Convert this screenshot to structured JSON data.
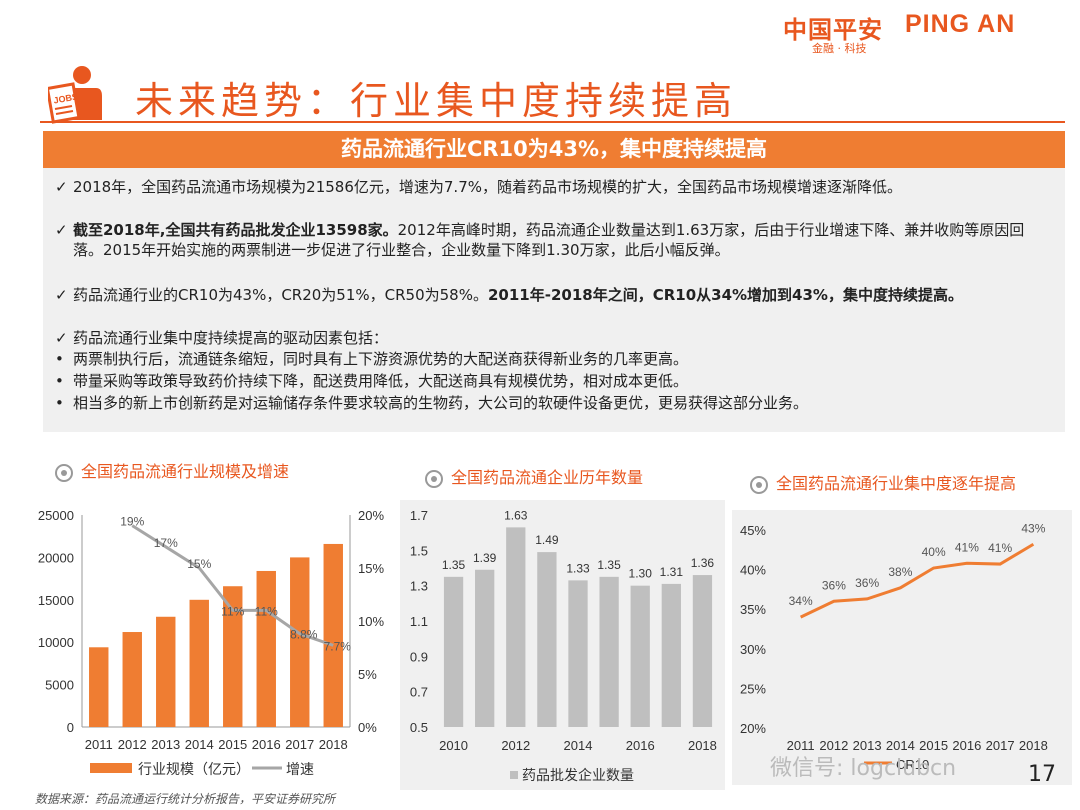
{
  "brand": {
    "cn": "中国平安",
    "en": "PING AN",
    "sub": "金融 · 科技"
  },
  "title": "未来趋势：行业集中度持续提高",
  "icon": "jobs-board-icon",
  "banner": "药品流通行业CR10为43%，集中度持续提高",
  "bullets": {
    "b1": "2018年，全国药品流通市场规模为21586亿元，增速为7.7%，随着药品市场规模的扩大，全国药品市场规模增速逐渐降低。",
    "b2_bold": "截至2018年,全国共有药品批发企业13598家。",
    "b2_rest": "2012年高峰时期，药品流通企业数量达到1.63万家，后由于行业增速下降、兼并收购等原因回落。2015年开始实施的两票制进一步促进了行业整合，企业数量下降到1.30万家，此后小幅反弹。",
    "b3_rest": "药品流通行业的CR10为43%，CR20为51%，CR50为58%。",
    "b3_bold": "2011年-2018年之间，CR10从34%增加到43%，集中度持续提高。",
    "b4": "药品流通行业集中度持续提高的驱动因素包括：",
    "d1": "两票制执行后，流通链条缩短，同时具有上下游资源优势的大配送商获得新业务的几率更高。",
    "d2": "带量采购等政策导致药价持续下降，配送费用降低，大配送商具有规模优势，相对成本更低。",
    "d3": "相当多的新上市创新药是对运输储存条件要求较高的生物药，大公司的软硬件设备更优，更易获得这部分业务。"
  },
  "chart_titles": [
    "全国药品流通行业规模及增速",
    "全国药品流通企业历年数量",
    "全国药品流通行业集中度逐年提高"
  ],
  "footer": "数据来源：药品流通运行统计分析报告，平安证券研究所",
  "page_number": "17",
  "watermark": "微信号: logclubcn",
  "colors": {
    "orange": "#e8571f",
    "banner": "#ef7d32",
    "bar_orange": "#ef7d32",
    "bar_grey": "#bfbfbf",
    "line_grey": "#a6a6a6"
  },
  "chart_data": [
    {
      "type": "bar",
      "title": "全国药品流通行业规模及增速",
      "categories": [
        "2011",
        "2012",
        "2013",
        "2014",
        "2015",
        "2016",
        "2017",
        "2018"
      ],
      "series": [
        {
          "name": "行业规模（亿元）",
          "type": "bar",
          "values": [
            9400,
            11200,
            13000,
            15000,
            16600,
            18400,
            20000,
            21586
          ]
        },
        {
          "name": "增速",
          "type": "line",
          "axis": "right",
          "values": [
            19,
            17,
            15,
            11,
            11,
            8.8,
            7.7
          ],
          "x": [
            "2012",
            "2013",
            "2014",
            "2015",
            "2016",
            "2017",
            "2018"
          ],
          "labels": [
            "19%",
            "17%",
            "15%",
            "11%",
            "11%",
            "8.8%",
            "7.7%"
          ]
        }
      ],
      "yticks": [
        "0",
        "5000",
        "10000",
        "15000",
        "20000",
        "25000"
      ],
      "ylim": [
        0,
        25000
      ],
      "y2ticks": [
        "0%",
        "5%",
        "10%",
        "15%",
        "20%"
      ],
      "y2lim": [
        0,
        20
      ],
      "legend": "bottom"
    },
    {
      "type": "bar",
      "title": "全国药品流通企业历年数量",
      "categories": [
        "2010",
        "2011",
        "2012",
        "2013",
        "2014",
        "2015",
        "2016",
        "2017",
        "2018"
      ],
      "xticks": [
        "2010",
        "2012",
        "2014",
        "2016",
        "2018"
      ],
      "series": [
        {
          "name": "药品批发企业数量",
          "values": [
            1.35,
            1.39,
            1.63,
            1.49,
            1.33,
            1.35,
            1.3,
            1.31,
            1.36
          ],
          "labels": [
            "1.35",
            "1.39",
            "1.63",
            "1.49",
            "1.33",
            "1.35",
            "1.30",
            "1.31",
            "1.36"
          ]
        }
      ],
      "yticks": [
        "0.5",
        "0.7",
        "0.9",
        "1.1",
        "1.3",
        "1.5",
        "1.7"
      ],
      "ylim": [
        0.5,
        1.7
      ],
      "legend": "bottom"
    },
    {
      "type": "line",
      "title": "全国药品流通行业集中度逐年提高",
      "categories": [
        "2011",
        "2012",
        "2013",
        "2014",
        "2015",
        "2016",
        "2017",
        "2018"
      ],
      "series": [
        {
          "name": "CR10",
          "values": [
            34,
            36,
            36.3,
            37.7,
            40.2,
            40.8,
            40.7,
            43.2
          ],
          "labels": [
            "34%",
            "36%",
            "36%",
            "38%",
            "40%",
            "41%",
            "41%",
            "43%"
          ]
        }
      ],
      "yticks": [
        "20%",
        "25%",
        "30%",
        "35%",
        "40%",
        "45%"
      ],
      "ylim": [
        20,
        45
      ],
      "legend": "bottom"
    }
  ]
}
